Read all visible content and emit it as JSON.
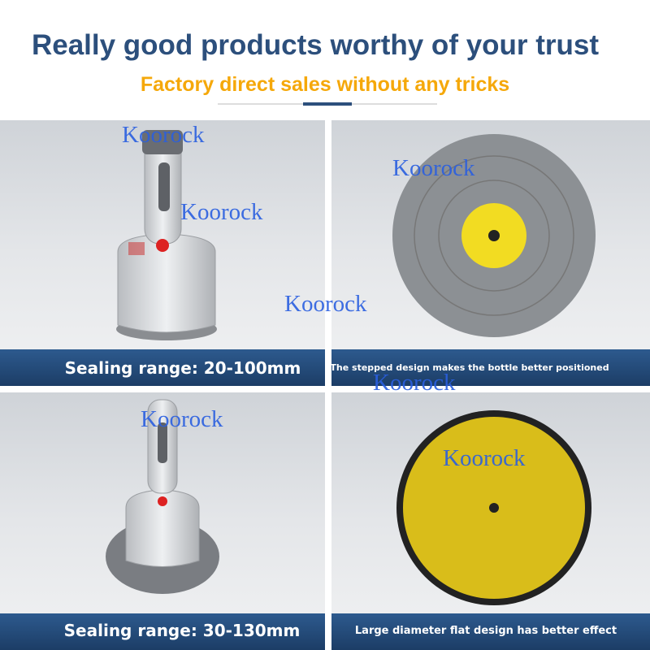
{
  "header": {
    "title": "Really good products worthy of your trust",
    "subtitle": "Factory direct sales without any tricks"
  },
  "panels": [
    {
      "caption": "Sealing range: 20-100mm"
    },
    {
      "caption": "The stepped design makes the bottle better positioned"
    },
    {
      "caption": "Sealing range: 30-130mm"
    },
    {
      "caption": "Large diameter flat design has better effect"
    }
  ],
  "watermarks": [
    "Koorock",
    "Koorock",
    "Koorock",
    "Koorock",
    "Koorock",
    "Koorock",
    "Koorock"
  ]
}
